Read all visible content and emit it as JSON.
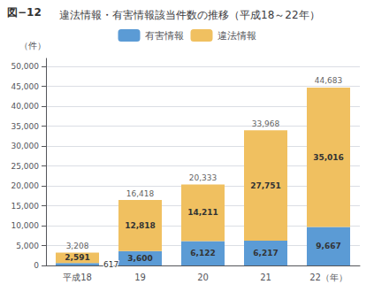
{
  "chart_data": {
    "type": "bar",
    "title": "違法情報・有害情報該当件数の推移（平成18～22年）",
    "annotations": [
      {
        "text": "図−12"
      }
    ],
    "ylabel": "（件）",
    "categories": [
      "平成18",
      "19",
      "20",
      "21",
      "22（年）"
    ],
    "series": [
      {
        "name": "有害情報",
        "color": "#5b9bd5",
        "values": [
          617,
          3600,
          6122,
          6217,
          9667
        ],
        "value_labels": [
          "617",
          "3,600",
          "6,122",
          "6,217",
          "9,667"
        ]
      },
      {
        "name": "違法情報",
        "color": "#f0c060",
        "values": [
          2591,
          12818,
          14211,
          27751,
          35016
        ],
        "value_labels": [
          "2,591",
          "12,818",
          "14,211",
          "27,751",
          "35,016"
        ]
      }
    ],
    "totals": [
      3208,
      16418,
      20333,
      33968,
      44683
    ],
    "total_labels": [
      "3,208",
      "16,418",
      "20,333",
      "33,968",
      "44,683"
    ],
    "stacked": true,
    "data_labels": true,
    "legend": "top",
    "grid": true,
    "ylim": [
      0,
      52000
    ],
    "yticks": [
      0,
      {
        "value": 5000,
        "label": "5,000"
      },
      {
        "value": 10000,
        "label": "10,000"
      },
      {
        "value": 15000,
        "label": "15,000"
      },
      {
        "value": 20000,
        "label": "20,000"
      },
      {
        "value": 25000,
        "label": "25,000"
      },
      {
        "value": 30000,
        "label": "30,000"
      },
      {
        "value": 35000,
        "label": "35,000"
      },
      {
        "value": 40000,
        "label": "40,000"
      },
      {
        "value": 45000,
        "label": "45,000"
      },
      {
        "value": 50000,
        "label": "50,000"
      }
    ]
  }
}
